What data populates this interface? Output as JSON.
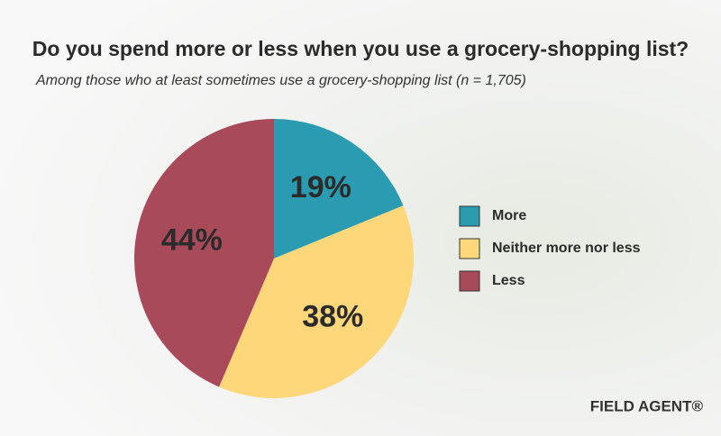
{
  "chart_data": {
    "type": "pie",
    "title": "Do you spend more or less when you use a grocery-shopping list?",
    "subtitle": "Among those who at least sometimes use a grocery-shopping list (n = 1,705)",
    "categories": [
      "More",
      "Neither more nor less",
      "Less"
    ],
    "values": [
      19,
      38,
      44
    ],
    "value_labels": [
      "19%",
      "38%",
      "44%"
    ],
    "colors": [
      "#2a9bb0",
      "#fdd77a",
      "#a84a5a"
    ],
    "legend": "right"
  },
  "logo": "FIELD AGENT®"
}
